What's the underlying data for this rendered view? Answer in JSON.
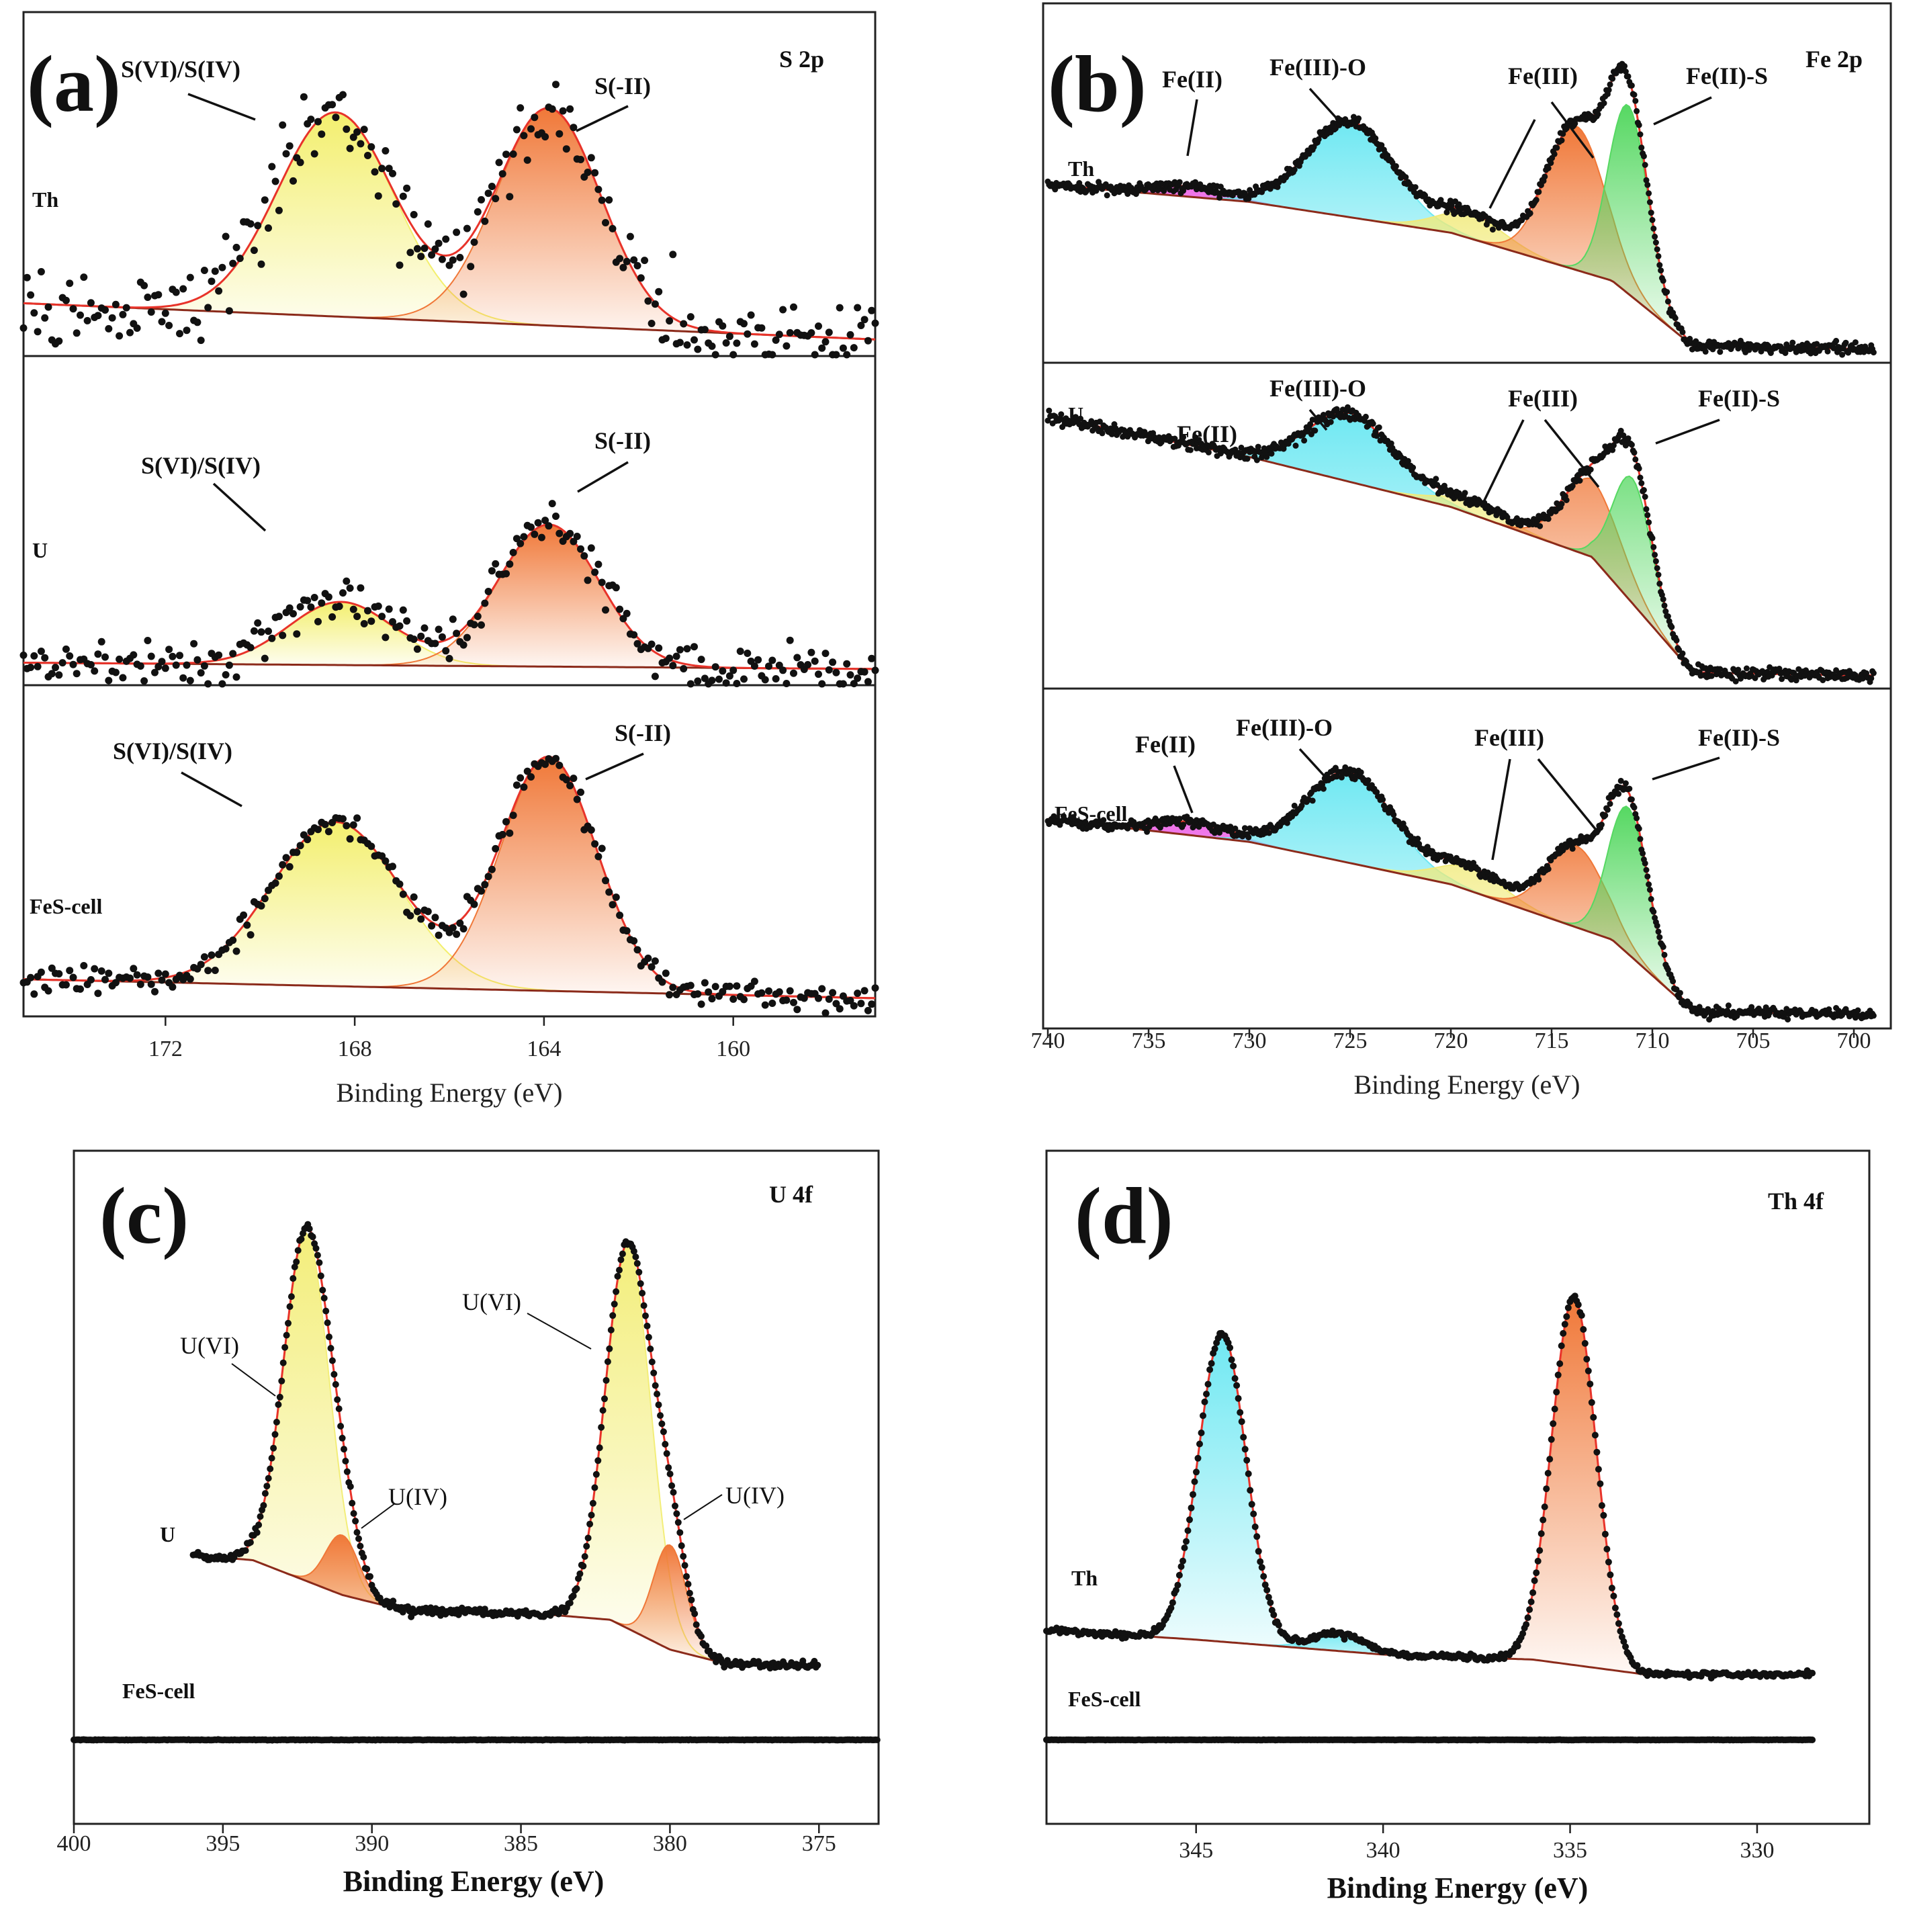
{
  "chart_data": [
    {
      "id": "a",
      "type": "line",
      "panel_label": "(a)",
      "region_label": "S 2p",
      "xlabel": "Binding Energy (eV)",
      "xlim": [
        175,
        157
      ],
      "xticks": [
        172,
        168,
        164,
        160
      ],
      "rows": [
        {
          "sample": "Th",
          "baseline": [
            [
              175,
              0.14
            ],
            [
              157,
              0.03
            ]
          ],
          "peaks": [
            {
              "label": "S(VI)/S(IV)",
              "center": 168.4,
              "fwhm": 2.9,
              "height": 0.62,
              "color": "#f3ef6e"
            },
            {
              "label": "S(-II)",
              "center": 163.9,
              "fwhm": 2.6,
              "height": 0.66,
              "color": "#f07838"
            }
          ],
          "noise": 0.06
        },
        {
          "sample": "U",
          "baseline": [
            [
              175,
              0.05
            ],
            [
              157,
              0.03
            ]
          ],
          "peaks": [
            {
              "label": "S(VI)/S(IV)",
              "center": 168.3,
              "fwhm": 2.6,
              "height": 0.2,
              "color": "#f3ef6e"
            },
            {
              "label": "S(-II)",
              "center": 163.9,
              "fwhm": 2.5,
              "height": 0.45,
              "color": "#f07838"
            }
          ],
          "noise": 0.04
        },
        {
          "sample": "FeS-cell",
          "baseline": [
            [
              175,
              0.09
            ],
            [
              157,
              0.03
            ]
          ],
          "peaks": [
            {
              "label": "S(VI)/S(IV)",
              "center": 168.4,
              "fwhm": 3.2,
              "height": 0.52,
              "color": "#f3ef6e"
            },
            {
              "label": "S(-II)",
              "center": 163.9,
              "fwhm": 2.4,
              "height": 0.74,
              "color": "#f07838"
            }
          ],
          "noise": 0.025
        }
      ]
    },
    {
      "id": "b",
      "type": "line",
      "panel_label": "(b)",
      "region_label": "Fe 2p",
      "xlabel": "Binding Energy (eV)",
      "xlim": [
        740,
        699
      ],
      "xticks": [
        740,
        735,
        730,
        725,
        720,
        715,
        710,
        705,
        700
      ],
      "rows": [
        {
          "sample": "Th",
          "baseline": [
            [
              740,
              0.5
            ],
            [
              730,
              0.45
            ],
            [
              720,
              0.36
            ],
            [
              712,
              0.22
            ],
            [
              708,
              0.03
            ],
            [
              699,
              0.02
            ]
          ],
          "peaks": [
            {
              "label": "Fe(II)",
              "center": 733.0,
              "fwhm": 4.0,
              "height": 0.03,
              "color": "#ee6ee8"
            },
            {
              "label": "Fe(III)-O",
              "center": 725.0,
              "fwhm": 5.0,
              "height": 0.28,
              "color": "#6fe8f2"
            },
            {
              "label": "Fe(III)",
              "center": 719.0,
              "fwhm": 4.0,
              "height": 0.07,
              "color": "#f1ea78"
            },
            {
              "label": "Fe(III)",
              "center": 713.8,
              "fwhm": 3.4,
              "height": 0.42,
              "color": "#f07838"
            },
            {
              "label": "Fe(II)-S",
              "center": 711.2,
              "fwhm": 2.3,
              "height": 0.55,
              "color": "#56d862"
            }
          ],
          "noise": 0.008
        },
        {
          "sample": "U",
          "baseline": [
            [
              740,
              0.85
            ],
            [
              730,
              0.72
            ],
            [
              720,
              0.56
            ],
            [
              713,
              0.4
            ],
            [
              708,
              0.03
            ],
            [
              699,
              0.02
            ]
          ],
          "peaks": [
            {
              "label": "Fe(II)",
              "center": 733.0,
              "fwhm": 4.0,
              "height": 0.0,
              "color": "#ee6ee8"
            },
            {
              "label": "Fe(III)-O",
              "center": 725.0,
              "fwhm": 5.0,
              "height": 0.22,
              "color": "#6fe8f2"
            },
            {
              "label": "Fe(III)",
              "center": 719.0,
              "fwhm": 4.0,
              "height": 0.04,
              "color": "#f1ea78"
            },
            {
              "label": "Fe(III)",
              "center": 713.0,
              "fwhm": 3.4,
              "height": 0.25,
              "color": "#f07838"
            },
            {
              "label": "Fe(II)-S",
              "center": 711.0,
              "fwhm": 2.3,
              "height": 0.4,
              "color": "#56d862"
            }
          ],
          "noise": 0.01
        },
        {
          "sample": "FeS-cell",
          "baseline": [
            [
              740,
              0.62
            ],
            [
              730,
              0.55
            ],
            [
              720,
              0.42
            ],
            [
              712,
              0.25
            ],
            [
              708,
              0.03
            ],
            [
              699,
              0.02
            ]
          ],
          "peaks": [
            {
              "label": "Fe(II)",
              "center": 733.0,
              "fwhm": 4.0,
              "height": 0.04,
              "color": "#ee6ee8"
            },
            {
              "label": "Fe(III)-O",
              "center": 725.0,
              "fwhm": 5.0,
              "height": 0.28,
              "color": "#6fe8f2"
            },
            {
              "label": "Fe(III)",
              "center": 719.0,
              "fwhm": 4.0,
              "height": 0.07,
              "color": "#f1ea78"
            },
            {
              "label": "Fe(III)",
              "center": 713.8,
              "fwhm": 3.4,
              "height": 0.25,
              "color": "#f07838"
            },
            {
              "label": "Fe(II)-S",
              "center": 711.2,
              "fwhm": 2.3,
              "height": 0.45,
              "color": "#56d862"
            }
          ],
          "noise": 0.008
        }
      ]
    },
    {
      "id": "c",
      "type": "line",
      "panel_label": "(c)",
      "region_label": "U 4f",
      "xlabel": "Binding Energy (eV)",
      "xlim": [
        400,
        373
      ],
      "xticks": [
        400,
        395,
        390,
        385,
        380,
        375
      ],
      "rows": [
        {
          "sample": "U",
          "data_xlim": [
            396,
            375
          ],
          "baseline": [
            [
              396,
              0.25
            ],
            [
              394,
              0.24
            ],
            [
              391,
              0.17
            ],
            [
              389,
              0.14
            ],
            [
              384,
              0.13
            ],
            [
              382,
              0.12
            ],
            [
              380,
              0.06
            ],
            [
              378,
              0.03
            ],
            [
              375,
              0.03
            ]
          ],
          "peaks": [
            {
              "label": "U(VI)",
              "center": 392.2,
              "fwhm": 1.8,
              "height": 0.7,
              "color": "#f3ee7a"
            },
            {
              "label": "U(IV)",
              "center": 391.0,
              "fwhm": 1.3,
              "height": 0.12,
              "color": "#f07838"
            },
            {
              "label": "U(VI)",
              "center": 381.4,
              "fwhm": 1.8,
              "height": 0.77,
              "color": "#f3ee7a"
            },
            {
              "label": "U(IV)",
              "center": 380.0,
              "fwhm": 1.3,
              "height": 0.21,
              "color": "#f07838"
            }
          ],
          "noise": 0.004
        },
        {
          "sample": "FeS-cell",
          "data_xlim": [
            400,
            373
          ],
          "baseline": [
            [
              400,
              0.0
            ],
            [
              373,
              0.0
            ]
          ],
          "peaks": [],
          "noise": 0.004
        }
      ]
    },
    {
      "id": "d",
      "type": "line",
      "panel_label": "(d)",
      "region_label": "Th 4f",
      "xlabel": "Binding Energy (eV)",
      "xlim": [
        349,
        327
      ],
      "xticks": [
        345,
        340,
        335,
        330
      ],
      "rows": [
        {
          "sample": "Th",
          "data_xlim": [
            349,
            328.5
          ],
          "baseline": [
            [
              349,
              0.1
            ],
            [
              345,
              0.08
            ],
            [
              340,
              0.05
            ],
            [
              336,
              0.04
            ],
            [
              333,
              0.01
            ],
            [
              328.5,
              0.01
            ]
          ],
          "peaks": [
            {
              "label": "",
              "center": 344.3,
              "fwhm": 1.5,
              "height": 0.62,
              "color": "#6fe8f2"
            },
            {
              "label": "",
              "center": 341.2,
              "fwhm": 1.6,
              "height": 0.035,
              "color": "#6fe8f2"
            },
            {
              "label": "",
              "center": 334.9,
              "fwhm": 1.4,
              "height": 0.74,
              "color": "#f07838"
            }
          ],
          "noise": 0.003
        },
        {
          "sample": "FeS-cell",
          "data_xlim": [
            349,
            328.5
          ],
          "baseline": [
            [
              349,
              0.0
            ],
            [
              328.5,
              0.0
            ]
          ],
          "peaks": [],
          "noise": 0.004
        }
      ]
    }
  ]
}
